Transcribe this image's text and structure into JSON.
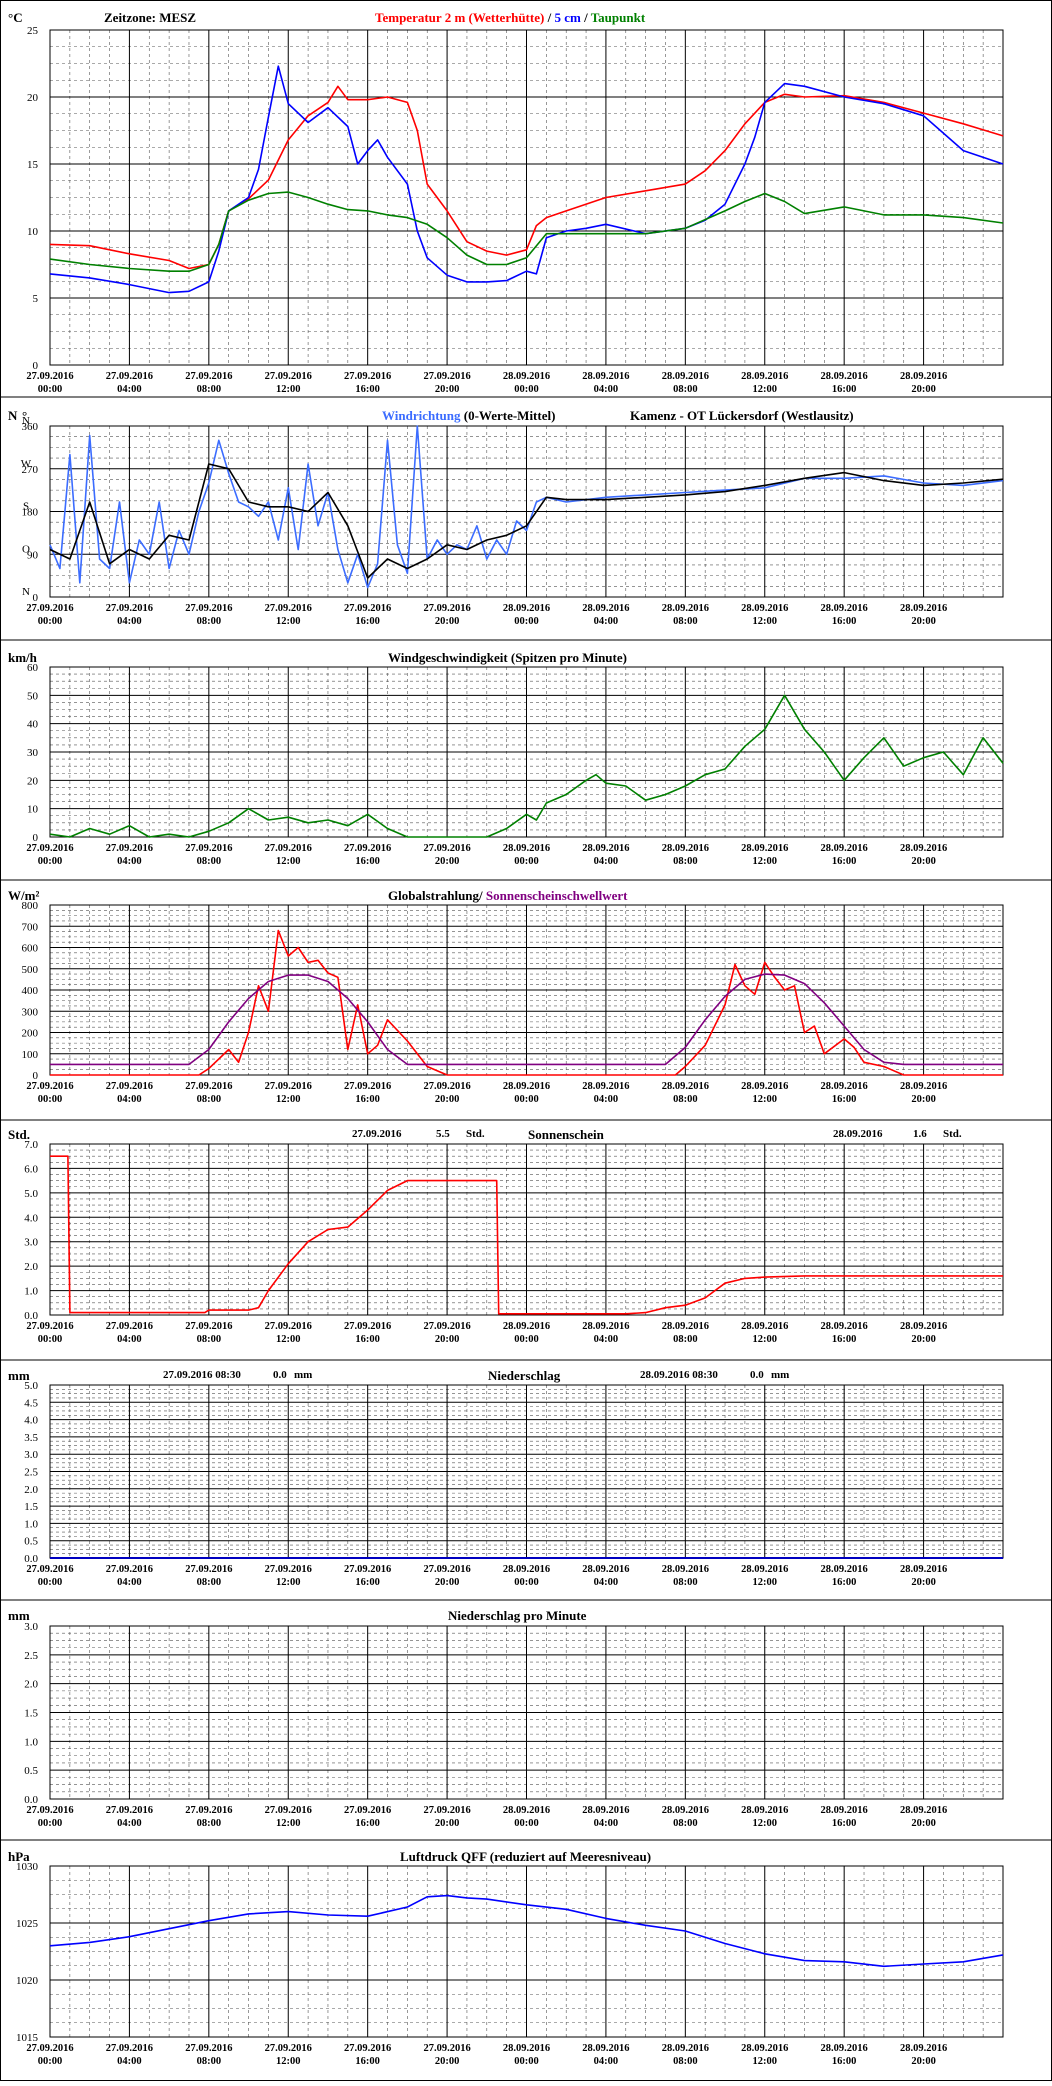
{
  "page": {
    "timezone_label": "Zeitzone: MESZ",
    "station": "Kamenz - OT Lückersdorf (Westlausitz)"
  },
  "time_axis": {
    "labels": [
      [
        "27.09.2016",
        "00:00"
      ],
      [
        "27.09.2016",
        "04:00"
      ],
      [
        "27.09.2016",
        "08:00"
      ],
      [
        "27.09.2016",
        "12:00"
      ],
      [
        "27.09.2016",
        "16:00"
      ],
      [
        "27.09.2016",
        "20:00"
      ],
      [
        "28.09.2016",
        "00:00"
      ],
      [
        "28.09.2016",
        "04:00"
      ],
      [
        "28.09.2016",
        "08:00"
      ],
      [
        "28.09.2016",
        "12:00"
      ],
      [
        "28.09.2016",
        "16:00"
      ],
      [
        "28.09.2016",
        "20:00"
      ]
    ],
    "range_hours": [
      0,
      48
    ]
  },
  "colors": {
    "temperature": "#ff0000",
    "soil_5cm": "#0000ff",
    "dewpoint": "#008000",
    "wind_dir": "#3b6cff",
    "wind_dir_avg": "#000000",
    "wind_speed": "#008000",
    "radiation": "#ff0000",
    "threshold": "#800080",
    "sunshine": "#ff0000",
    "precip": "#0000c0",
    "pressure": "#0000ff"
  },
  "chart_data": [
    {
      "id": "temperature",
      "type": "line",
      "unit": "°C",
      "title_parts": [
        "Temperatur 2 m (Wetterhütte)",
        " / ",
        "5 cm",
        " / ",
        "Taupunkt"
      ],
      "ylim": [
        0,
        25
      ],
      "yticks": [
        0,
        5,
        10,
        15,
        20,
        25
      ],
      "series": [
        {
          "name": "Temperatur 2 m (Wetterhütte)",
          "x": [
            0,
            2,
            4,
            6,
            7,
            8,
            8.5,
            9,
            10,
            11,
            12,
            13,
            14,
            14.5,
            15,
            16,
            17,
            18,
            18.5,
            19,
            20,
            21,
            22,
            23,
            24,
            24.5,
            25,
            26,
            28,
            30,
            32,
            33,
            34,
            35,
            36,
            37,
            38,
            40,
            42,
            44,
            46,
            48
          ],
          "y": [
            9,
            8.9,
            8.3,
            7.8,
            7.2,
            7.5,
            9,
            11.5,
            12.4,
            13.8,
            16.8,
            18.6,
            19.6,
            20.8,
            19.8,
            19.8,
            20,
            19.6,
            17.5,
            13.5,
            11.5,
            9.2,
            8.5,
            8.2,
            8.6,
            10.4,
            11,
            11.5,
            12.5,
            13,
            13.5,
            14.5,
            16,
            18,
            19.6,
            20.2,
            20,
            20.1,
            19.6,
            18.8,
            18,
            17.1
          ]
        },
        {
          "name": "5 cm",
          "x": [
            0,
            2,
            4,
            6,
            7,
            8,
            8.5,
            9,
            10,
            10.5,
            11,
            11.5,
            12,
            13,
            14,
            15,
            15.5,
            16,
            16.5,
            17,
            18,
            18.5,
            19,
            20,
            21,
            22,
            23,
            24,
            24.5,
            25,
            26,
            27,
            28,
            30,
            32,
            33,
            34,
            35,
            35.5,
            36,
            37,
            38,
            40,
            42,
            44,
            46,
            48
          ],
          "y": [
            6.8,
            6.5,
            6,
            5.4,
            5.5,
            6.2,
            8.5,
            11.5,
            12.5,
            14.6,
            18.5,
            22.3,
            19.5,
            18.1,
            19.2,
            17.8,
            15,
            16,
            16.8,
            15.5,
            13.5,
            10,
            8,
            6.7,
            6.2,
            6.2,
            6.3,
            7,
            6.8,
            9.5,
            10,
            10.2,
            10.5,
            9.8,
            10.2,
            10.8,
            12,
            15,
            17,
            19.6,
            21,
            20.8,
            20,
            19.5,
            18.6,
            16,
            15
          ]
        },
        {
          "name": "Taupunkt",
          "x": [
            0,
            2,
            4,
            6,
            7,
            8,
            8.5,
            9,
            10,
            11,
            12,
            13,
            14,
            15,
            16,
            17,
            18,
            19,
            20,
            21,
            22,
            23,
            24,
            25,
            26,
            28,
            30,
            32,
            34,
            35,
            36,
            37,
            38,
            40,
            42,
            44,
            46,
            48
          ],
          "y": [
            7.9,
            7.5,
            7.2,
            7,
            7,
            7.5,
            9,
            11.5,
            12.3,
            12.8,
            12.9,
            12.5,
            12,
            11.6,
            11.5,
            11.2,
            11,
            10.5,
            9.5,
            8.2,
            7.5,
            7.5,
            8,
            9.8,
            9.8,
            9.8,
            9.8,
            10.2,
            11.5,
            12.2,
            12.8,
            12.2,
            11.3,
            11.8,
            11.2,
            11.2,
            11,
            10.6
          ]
        }
      ]
    },
    {
      "id": "wind_direction",
      "type": "line",
      "unit": "N",
      "unit2": "°",
      "title": "Windrichtung",
      "title_rest": " (0-Werte-Mittel)",
      "ylim": [
        0,
        360
      ],
      "yticks": [
        0,
        90,
        180,
        270,
        360
      ],
      "ylabels_compass": [
        "N",
        "O",
        "S",
        "W",
        "N"
      ],
      "series": [
        {
          "name": "Windrichtung",
          "x": [
            0,
            0.5,
            1,
            1.5,
            2,
            2.5,
            3,
            3.5,
            4,
            4.5,
            5,
            5.5,
            6,
            6.5,
            7,
            7.5,
            8,
            8.5,
            9,
            9.5,
            10,
            10.5,
            11,
            11.5,
            12,
            12.5,
            13,
            13.5,
            14,
            14.5,
            15,
            15.5,
            16,
            16.5,
            17,
            17.5,
            18,
            18.5,
            19,
            19.5,
            20,
            20.5,
            21,
            21.5,
            22,
            22.5,
            23,
            23.5,
            24,
            24.5,
            25,
            26,
            28,
            30,
            32,
            34,
            36,
            38,
            40,
            42,
            44,
            46,
            48
          ],
          "y": [
            110,
            60,
            300,
            30,
            340,
            80,
            60,
            200,
            30,
            120,
            90,
            200,
            60,
            140,
            90,
            180,
            240,
            330,
            260,
            200,
            190,
            170,
            200,
            120,
            230,
            100,
            280,
            150,
            220,
            100,
            30,
            90,
            20,
            70,
            330,
            110,
            50,
            360,
            80,
            120,
            90,
            110,
            100,
            150,
            80,
            120,
            90,
            160,
            140,
            200,
            210,
            200,
            210,
            215,
            220,
            225,
            230,
            250,
            250,
            255,
            240,
            235,
            245
          ]
        },
        {
          "name": "Mittel",
          "x": [
            0,
            1,
            2,
            3,
            4,
            5,
            6,
            7,
            8,
            9,
            10,
            11,
            12,
            13,
            14,
            15,
            16,
            17,
            18,
            19,
            20,
            21,
            22,
            23,
            24,
            25,
            26,
            28,
            30,
            32,
            34,
            36,
            38,
            40,
            42,
            44,
            46,
            48
          ],
          "y": [
            100,
            80,
            200,
            70,
            100,
            80,
            130,
            120,
            280,
            270,
            200,
            190,
            190,
            180,
            220,
            150,
            40,
            80,
            60,
            80,
            110,
            100,
            120,
            130,
            150,
            210,
            205,
            205,
            210,
            215,
            222,
            235,
            250,
            262,
            245,
            235,
            240,
            248
          ]
        }
      ]
    },
    {
      "id": "wind_speed",
      "type": "line",
      "unit": "km/h",
      "title": "Windgeschwindigkeit (Spitzen pro Minute)",
      "ylim": [
        0,
        60
      ],
      "yticks": [
        0,
        10,
        20,
        30,
        40,
        50,
        60
      ],
      "series": [
        {
          "name": "Windgeschwindigkeit",
          "x": [
            0,
            1,
            2,
            3,
            4,
            5,
            6,
            7,
            8,
            9,
            10,
            11,
            12,
            13,
            14,
            15,
            16,
            17,
            18,
            19,
            20,
            21,
            22,
            23,
            24,
            24.5,
            25,
            26,
            27,
            27.5,
            28,
            29,
            30,
            31,
            32,
            33,
            34,
            35,
            36,
            37,
            38,
            39,
            40,
            41,
            42,
            43,
            44,
            45,
            46,
            47,
            48
          ],
          "y": [
            1,
            0,
            3,
            1,
            4,
            0,
            1,
            0,
            2,
            5,
            10,
            6,
            7,
            5,
            6,
            4,
            8,
            3,
            0,
            0,
            0,
            0,
            0,
            3,
            8,
            6,
            12,
            15,
            20,
            22,
            19,
            18,
            13,
            15,
            18,
            22,
            24,
            32,
            38,
            50,
            38,
            30,
            20,
            28,
            35,
            25,
            28,
            30,
            22,
            35,
            26
          ]
        }
      ]
    },
    {
      "id": "radiation",
      "type": "line",
      "unit": "W/m²",
      "title": "Globalstrahlung",
      "title_sep": "/ ",
      "title2": "Sonnenscheinschwellwert",
      "ylim": [
        0,
        800
      ],
      "yticks": [
        0,
        100,
        200,
        300,
        400,
        500,
        600,
        700,
        800
      ],
      "series": [
        {
          "name": "Globalstrahlung",
          "x": [
            0,
            7.5,
            8,
            9,
            9.5,
            10,
            10.5,
            11,
            11.5,
            12,
            12.5,
            13,
            13.5,
            14,
            14.5,
            15,
            15.5,
            16,
            16.5,
            17,
            18,
            19,
            20,
            24,
            31.5,
            32,
            33,
            34,
            34.5,
            35,
            35.5,
            36,
            36.5,
            37,
            37.5,
            38,
            38.5,
            39,
            40,
            40.5,
            41,
            42,
            43,
            48
          ],
          "y": [
            0,
            0,
            30,
            120,
            60,
            200,
            420,
            300,
            680,
            560,
            600,
            530,
            540,
            480,
            460,
            120,
            330,
            100,
            140,
            260,
            160,
            40,
            0,
            0,
            0,
            40,
            140,
            330,
            520,
            420,
            380,
            530,
            460,
            400,
            420,
            200,
            230,
            100,
            170,
            130,
            60,
            40,
            0,
            0
          ]
        },
        {
          "name": "Sonnenscheinschwellwert",
          "x": [
            0,
            7,
            8,
            9,
            10,
            11,
            12,
            13,
            14,
            15,
            16,
            17,
            18,
            19,
            20,
            31,
            32,
            33,
            34,
            35,
            36,
            37,
            38,
            39,
            40,
            41,
            42,
            43,
            48
          ],
          "y": [
            50,
            50,
            120,
            250,
            360,
            440,
            470,
            470,
            440,
            360,
            250,
            120,
            50,
            50,
            50,
            50,
            130,
            260,
            370,
            450,
            475,
            470,
            430,
            340,
            230,
            120,
            60,
            50,
            50
          ]
        }
      ]
    },
    {
      "id": "sunshine",
      "type": "line",
      "unit": "Std.",
      "title": "Sonnenschein",
      "summary": [
        {
          "date": "27.09.2016",
          "value": "5.5",
          "unit": "Std."
        },
        {
          "date": "28.09.2016",
          "value": "1.6",
          "unit": "Std."
        }
      ],
      "ylim": [
        0,
        7
      ],
      "yticks": [
        0,
        1,
        2,
        3,
        4,
        5,
        6,
        7
      ],
      "ytick_labels": [
        "0.0",
        "1.0",
        "2.0",
        "3.0",
        "4.0",
        "5.0",
        "6.0",
        "7.0"
      ],
      "series": [
        {
          "name": "Sonnenschein",
          "x": [
            0,
            0.8,
            0.9,
            1,
            7.8,
            8,
            10,
            10.5,
            11,
            12,
            13,
            14,
            15,
            16,
            17,
            18,
            19,
            20,
            21,
            22,
            22.5,
            22.6,
            23,
            24,
            29,
            30,
            31,
            32,
            33,
            34,
            35,
            36,
            38,
            48
          ],
          "y": [
            6.5,
            6.5,
            6.5,
            0.1,
            0.1,
            0.2,
            0.2,
            0.3,
            1,
            2.1,
            3,
            3.5,
            3.6,
            4.3,
            5.1,
            5.5,
            5.5,
            5.5,
            5.5,
            5.5,
            5.5,
            0.05,
            0.05,
            0.05,
            0.05,
            0.1,
            0.3,
            0.4,
            0.7,
            1.3,
            1.5,
            1.55,
            1.6,
            1.6
          ]
        }
      ]
    },
    {
      "id": "precipitation",
      "type": "line",
      "unit": "mm",
      "title": "Niederschlag",
      "summary": [
        {
          "date": "27.09.2016 08:30",
          "value": "0.0",
          "unit": "mm"
        },
        {
          "date": "28.09.2016 08:30",
          "value": "0.0",
          "unit": "mm"
        }
      ],
      "ylim": [
        0,
        5
      ],
      "yticks": [
        0,
        0.5,
        1,
        1.5,
        2,
        2.5,
        3,
        3.5,
        4,
        4.5,
        5
      ],
      "ytick_labels": [
        "0.0",
        "0.5",
        "1.0",
        "1.5",
        "2.0",
        "2.5",
        "3.0",
        "3.5",
        "4.0",
        "4.5",
        "5.0"
      ],
      "series": [
        {
          "name": "Niederschlag",
          "x": [
            0,
            48
          ],
          "y": [
            0,
            0
          ]
        }
      ]
    },
    {
      "id": "precipitation_minute",
      "type": "line",
      "unit": "mm",
      "title": "Niederschlag pro Minute",
      "ylim": [
        0,
        3
      ],
      "yticks": [
        0,
        0.5,
        1,
        1.5,
        2,
        2.5,
        3
      ],
      "ytick_labels": [
        "0.0",
        "0.5",
        "1.0",
        "1.5",
        "2.0",
        "2.5",
        "3.0"
      ],
      "series": []
    },
    {
      "id": "pressure",
      "type": "line",
      "unit": "hPa",
      "title": "Luftdruck QFF (reduziert auf Meeresniveau)",
      "ylim": [
        1015,
        1030
      ],
      "yticks": [
        1015,
        1020,
        1025,
        1030
      ],
      "series": [
        {
          "name": "Luftdruck QFF",
          "x": [
            0,
            2,
            4,
            6,
            8,
            10,
            12,
            14,
            16,
            18,
            19,
            20,
            21,
            22,
            24,
            26,
            28,
            30,
            32,
            34,
            36,
            38,
            40,
            42,
            44,
            46,
            48
          ],
          "y": [
            1023,
            1023.3,
            1023.8,
            1024.5,
            1025.2,
            1025.8,
            1026,
            1025.7,
            1025.6,
            1026.4,
            1027.3,
            1027.4,
            1027.2,
            1027.1,
            1026.6,
            1026.2,
            1025.4,
            1024.8,
            1024.3,
            1023.2,
            1022.3,
            1021.7,
            1021.6,
            1021.2,
            1021.4,
            1021.6,
            1022.2
          ]
        }
      ]
    }
  ]
}
